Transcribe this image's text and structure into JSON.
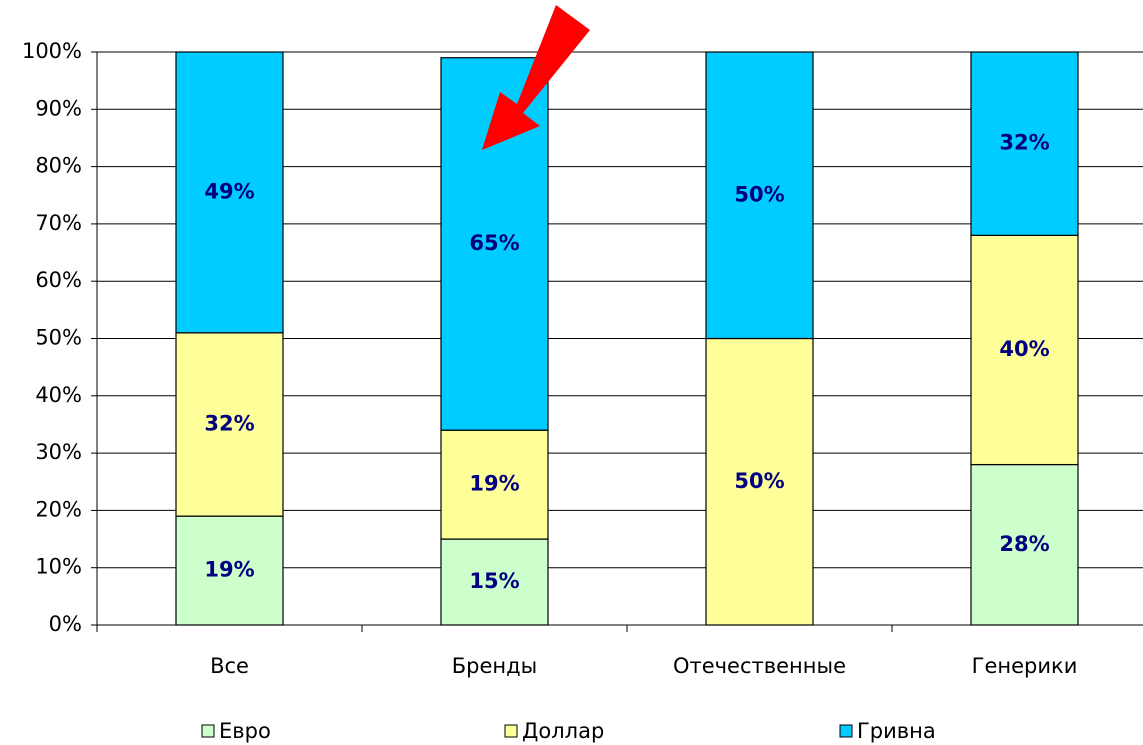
{
  "chart_data": {
    "type": "stacked_bar",
    "categories": [
      "Все",
      "Бренды",
      "Отечественные",
      "Генерики"
    ],
    "series": [
      {
        "name": "Евро",
        "color": "#ccffcc",
        "values": [
          19,
          15,
          null,
          28
        ],
        "value_labels": [
          "19%",
          "15%",
          null,
          "28%"
        ]
      },
      {
        "name": "Доллар",
        "color": "#ffff99",
        "values": [
          32,
          19,
          50,
          40
        ],
        "value_labels": [
          "32%",
          "19%",
          "50%",
          "40%"
        ]
      },
      {
        "name": "Гривна",
        "color": "#00ccff",
        "values": [
          49,
          65,
          50,
          32
        ],
        "value_labels": [
          "49%",
          "65%",
          "50%",
          "32%"
        ]
      }
    ],
    "ylim": [
      0,
      100
    ],
    "yticks": [
      {
        "value": 0,
        "label": "0%"
      },
      {
        "value": 10,
        "label": "10%"
      },
      {
        "value": 20,
        "label": "20%"
      },
      {
        "value": 30,
        "label": "30%"
      },
      {
        "value": 40,
        "label": "40%"
      },
      {
        "value": 50,
        "label": "50%"
      },
      {
        "value": 60,
        "label": "60%"
      },
      {
        "value": 70,
        "label": "70%"
      },
      {
        "value": 80,
        "label": "80%"
      },
      {
        "value": 90,
        "label": "90%"
      },
      {
        "value": 100,
        "label": "100%"
      }
    ],
    "grid": true,
    "legend": "bottom"
  }
}
